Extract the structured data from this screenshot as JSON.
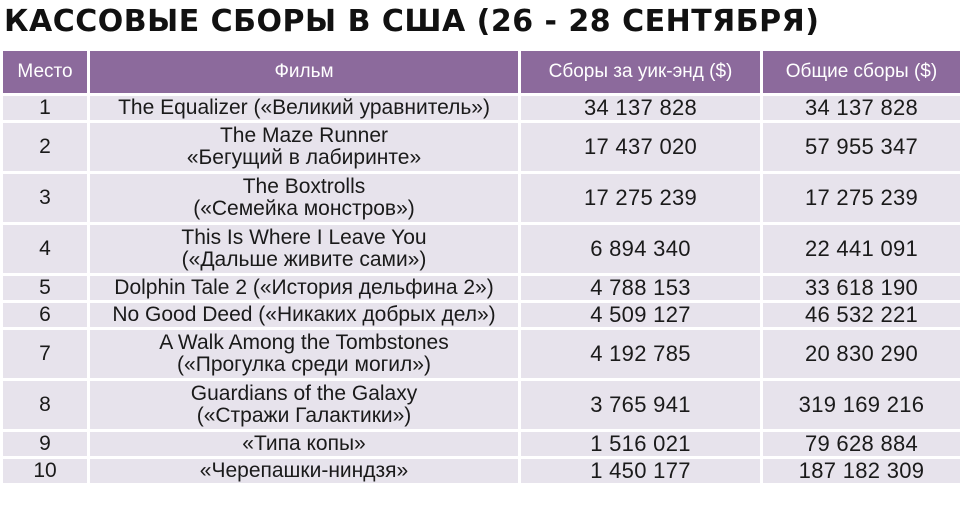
{
  "title": "КАССОВЫЕ СБОРЫ В США (26 - 28 СЕНТЯБРЯ)",
  "headers": {
    "place": "Место",
    "film": "Фильм",
    "weekend": "Сборы за уик-энд ($)",
    "total": "Общие сборы ($)"
  },
  "rows": [
    {
      "place": "1",
      "film": [
        "The Equalizer («Великий уравнитель»)"
      ],
      "weekend": "34 137 828",
      "total": "34 137 828"
    },
    {
      "place": "2",
      "film": [
        "The Maze Runner",
        "«Бегущий в лабиринте»"
      ],
      "weekend": "17 437 020",
      "total": "57 955 347"
    },
    {
      "place": "3",
      "film": [
        "The Boxtrolls",
        "(«Семейка монстров»)"
      ],
      "weekend": "17 275 239",
      "total": "17 275 239"
    },
    {
      "place": "4",
      "film": [
        "This Is Where I Leave You",
        "(«Дальше живите сами»)"
      ],
      "weekend": "6 894 340",
      "total": "22 441 091"
    },
    {
      "place": "5",
      "film": [
        "Dolphin Tale 2 («История дельфина 2»)"
      ],
      "weekend": "4 788 153",
      "total": "33 618 190"
    },
    {
      "place": "6",
      "film": [
        "No Good Deed («Никаких добрых дел»)"
      ],
      "weekend": "4 509 127",
      "total": "46 532 221"
    },
    {
      "place": "7",
      "film": [
        "A Walk Among the Tombstones",
        "(«Прогулка среди могил»)"
      ],
      "weekend": "4 192 785",
      "total": "20 830 290"
    },
    {
      "place": "8",
      "film": [
        "Guardians of the Galaxy",
        "(«Стражи Галактики»)"
      ],
      "weekend": "3 765 941",
      "total": "319 169 216"
    },
    {
      "place": "9",
      "film": [
        "«Типа копы»"
      ],
      "weekend": "1 516 021",
      "total": "79 628 884"
    },
    {
      "place": "10",
      "film": [
        "«Черепашки-ниндзя»"
      ],
      "weekend": "1 450 177",
      "total": "187 182 309"
    }
  ],
  "colors": {
    "header_bg": "#8c6a9c",
    "row_bg": "#e7e3ec"
  }
}
